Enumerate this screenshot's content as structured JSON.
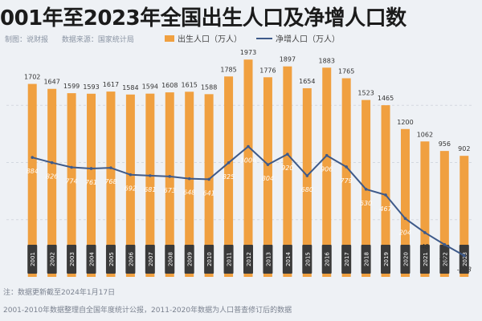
{
  "header": {
    "title": "001年至2023年全国出生人口及净增人口数",
    "author": "制图：说财报",
    "source": "数据来源：国家统计局"
  },
  "footer": {
    "note1": "注：数据更新截至2024年1月17日",
    "note2": "2001-2010年数据整理自全国年度统计公报，2011-2020年数据为人口普查修订后的数据"
  },
  "colors": {
    "bar": "#f0a040",
    "line": "#3e5a8a",
    "label_box": "#3a3a3a"
  },
  "chart_data": {
    "type": "bar",
    "categories": [
      "2001",
      "2002",
      "2003",
      "2004",
      "2005",
      "2006",
      "2007",
      "2008",
      "2009",
      "2010",
      "2011",
      "2012",
      "2013",
      "2014",
      "2015",
      "2016",
      "2017",
      "2018",
      "2019",
      "2020",
      "2021",
      "2022",
      "2023"
    ],
    "series": [
      {
        "name": "出生人口（万人）",
        "type": "bar",
        "values": [
          1702,
          1647,
          1599,
          1593,
          1617,
          1584,
          1594,
          1608,
          1615,
          1588,
          1785,
          1973,
          1776,
          1897,
          1654,
          1883,
          1765,
          1523,
          1465,
          1200,
          1062,
          956,
          902
        ]
      },
      {
        "name": "净增人口（万人）",
        "type": "line",
        "values": [
          884,
          826,
          774,
          761,
          768,
          692,
          681,
          673,
          648,
          641,
          825,
          1006,
          804,
          920,
          680,
          906,
          779,
          530,
          467,
          204,
          48,
          -85,
          -208
        ]
      }
    ],
    "legend": [
      "出生人口（万人）",
      "净增人口（万人）"
    ],
    "ylim": [
      -400,
      2100
    ]
  }
}
